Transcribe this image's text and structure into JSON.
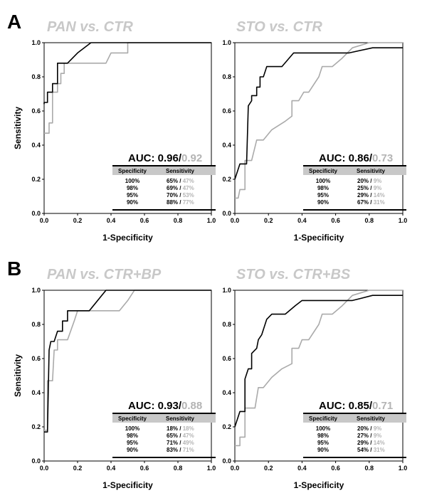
{
  "panel_letters": [
    "A",
    "B"
  ],
  "chart_data": [
    {
      "type": "line",
      "title": "PAN vs. CTR",
      "xlabel": "1-Specificity",
      "ylabel": "Sensitivity",
      "xlim": [
        0,
        1
      ],
      "ylim": [
        0,
        1
      ],
      "xticks": [
        "0.0",
        "0.2",
        "0.4",
        "0.6",
        "0.8",
        "1.0"
      ],
      "yticks": [
        "0.0",
        "0.2",
        "0.4",
        "0.6",
        "0.8",
        "1.0"
      ],
      "auc_label": "AUC:",
      "auc_black": "0.96/",
      "auc_gray": "0.92",
      "table_headers": [
        "Specificity",
        "Sensitivity"
      ],
      "table_rows": [
        {
          "spec": "100%",
          "sens_black": "65% /",
          "sens_gray": "47%"
        },
        {
          "spec": "98%",
          "sens_black": "69% /",
          "sens_gray": "47%"
        },
        {
          "spec": "95%",
          "sens_black": "70% /",
          "sens_gray": "53%"
        },
        {
          "spec": "90%",
          "sens_black": "88% /",
          "sens_gray": "77%"
        }
      ],
      "series": [
        {
          "color": "#000000",
          "points": [
            [
              0,
              0.64
            ],
            [
              0,
              0.65
            ],
            [
              0.02,
              0.65
            ],
            [
              0.02,
              0.71
            ],
            [
              0.05,
              0.71
            ],
            [
              0.05,
              0.76
            ],
            [
              0.08,
              0.76
            ],
            [
              0.08,
              0.88
            ],
            [
              0.14,
              0.88
            ],
            [
              0.14,
              0.88
            ],
            [
              0.2,
              0.94
            ],
            [
              0.28,
              1.0
            ],
            [
              1.0,
              1.0
            ]
          ]
        },
        {
          "color": "#aaaaaa",
          "points": [
            [
              0,
              0.47
            ],
            [
              0.03,
              0.47
            ],
            [
              0.03,
              0.53
            ],
            [
              0.05,
              0.53
            ],
            [
              0.05,
              0.71
            ],
            [
              0.08,
              0.71
            ],
            [
              0.08,
              0.76
            ],
            [
              0.1,
              0.76
            ],
            [
              0.1,
              0.82
            ],
            [
              0.12,
              0.82
            ],
            [
              0.12,
              0.88
            ],
            [
              0.37,
              0.88
            ],
            [
              0.4,
              0.94
            ],
            [
              0.5,
              0.94
            ],
            [
              0.5,
              1.0
            ],
            [
              1.0,
              1.0
            ]
          ]
        }
      ]
    },
    {
      "type": "line",
      "title": "STO vs. CTR",
      "xlabel": "1-Specificity",
      "ylabel": "",
      "xlim": [
        0,
        1
      ],
      "ylim": [
        0,
        1
      ],
      "xticks": [
        "0.0",
        "0.2",
        "0.4",
        "0.6",
        "0.8",
        "1.0"
      ],
      "yticks": [
        "0.0",
        "0.2",
        "0.4",
        "0.6",
        "0.8",
        "1.0"
      ],
      "auc_label": "AUC:",
      "auc_black": "0.86/",
      "auc_gray": "0.73",
      "table_headers": [
        "Specificity",
        "Sensitivity"
      ],
      "table_rows": [
        {
          "spec": "100%",
          "sens_black": "20% /",
          "sens_gray": "9%"
        },
        {
          "spec": "98%",
          "sens_black": "25% /",
          "sens_gray": "9%"
        },
        {
          "spec": "95%",
          "sens_black": "29% /",
          "sens_gray": "14%"
        },
        {
          "spec": "90%",
          "sens_black": "67% /",
          "sens_gray": "31%"
        }
      ],
      "series": [
        {
          "color": "#000000",
          "points": [
            [
              0,
              0.2
            ],
            [
              0.03,
              0.29
            ],
            [
              0.07,
              0.29
            ],
            [
              0.08,
              0.63
            ],
            [
              0.1,
              0.66
            ],
            [
              0.1,
              0.69
            ],
            [
              0.13,
              0.69
            ],
            [
              0.13,
              0.74
            ],
            [
              0.15,
              0.74
            ],
            [
              0.15,
              0.8
            ],
            [
              0.17,
              0.8
            ],
            [
              0.18,
              0.83
            ],
            [
              0.19,
              0.86
            ],
            [
              0.28,
              0.86
            ],
            [
              0.35,
              0.94
            ],
            [
              0.6,
              0.94
            ],
            [
              0.68,
              0.94
            ],
            [
              0.82,
              0.97
            ],
            [
              1.0,
              0.97
            ]
          ]
        },
        {
          "color": "#aaaaaa",
          "points": [
            [
              0,
              0.09
            ],
            [
              0.02,
              0.09
            ],
            [
              0.03,
              0.14
            ],
            [
              0.06,
              0.14
            ],
            [
              0.06,
              0.31
            ],
            [
              0.1,
              0.31
            ],
            [
              0.13,
              0.43
            ],
            [
              0.17,
              0.43
            ],
            [
              0.22,
              0.49
            ],
            [
              0.3,
              0.54
            ],
            [
              0.34,
              0.57
            ],
            [
              0.34,
              0.66
            ],
            [
              0.38,
              0.66
            ],
            [
              0.41,
              0.71
            ],
            [
              0.44,
              0.71
            ],
            [
              0.5,
              0.8
            ],
            [
              0.52,
              0.86
            ],
            [
              0.58,
              0.86
            ],
            [
              0.64,
              0.91
            ],
            [
              0.7,
              0.97
            ],
            [
              0.8,
              1.0
            ],
            [
              1.0,
              1.0
            ]
          ]
        }
      ]
    },
    {
      "type": "line",
      "title": "PAN vs. CTR+BP",
      "xlabel": "1-Specificity",
      "ylabel": "Sensitivity",
      "xlim": [
        0,
        1
      ],
      "ylim": [
        0,
        1
      ],
      "xticks": [
        "0.0",
        "0.2",
        "0.4",
        "0.6",
        "0.8",
        "1.0"
      ],
      "yticks": [
        "0.0",
        "0.2",
        "0.4",
        "0.6",
        "0.8",
        "1.0"
      ],
      "auc_label": "AUC:",
      "auc_black": "0.93/",
      "auc_gray": "0.88",
      "table_headers": [
        "Specificity",
        "Sensitivity"
      ],
      "table_rows": [
        {
          "spec": "100%",
          "sens_black": "18% /",
          "sens_gray": "18%"
        },
        {
          "spec": "98%",
          "sens_black": "65% /",
          "sens_gray": "47%"
        },
        {
          "spec": "95%",
          "sens_black": "71% /",
          "sens_gray": "49%"
        },
        {
          "spec": "90%",
          "sens_black": "83% /",
          "sens_gray": "71%"
        }
      ],
      "series": [
        {
          "color": "#000000",
          "points": [
            [
              0,
              0.17
            ],
            [
              0.02,
              0.17
            ],
            [
              0.03,
              0.65
            ],
            [
              0.04,
              0.7
            ],
            [
              0.06,
              0.7
            ],
            [
              0.08,
              0.76
            ],
            [
              0.11,
              0.76
            ],
            [
              0.11,
              0.82
            ],
            [
              0.14,
              0.82
            ],
            [
              0.14,
              0.88
            ],
            [
              0.27,
              0.88
            ],
            [
              0.37,
              1.0
            ],
            [
              1.0,
              1.0
            ]
          ]
        },
        {
          "color": "#aaaaaa",
          "points": [
            [
              0,
              0.18
            ],
            [
              0.02,
              0.18
            ],
            [
              0.02,
              0.47
            ],
            [
              0.05,
              0.47
            ],
            [
              0.06,
              0.65
            ],
            [
              0.08,
              0.65
            ],
            [
              0.08,
              0.71
            ],
            [
              0.14,
              0.71
            ],
            [
              0.18,
              0.82
            ],
            [
              0.2,
              0.88
            ],
            [
              0.45,
              0.88
            ],
            [
              0.5,
              0.94
            ],
            [
              0.54,
              1.0
            ],
            [
              1.0,
              1.0
            ]
          ]
        }
      ]
    },
    {
      "type": "line",
      "title": "STO vs. CTR+BS",
      "xlabel": "1-Specificity",
      "ylabel": "",
      "xlim": [
        0,
        1
      ],
      "ylim": [
        0,
        1
      ],
      "xticks": [
        "0.0",
        "0.2",
        "0.4",
        "0.6",
        "0.8",
        "1.0"
      ],
      "yticks": [
        "0.0",
        "0.2",
        "0.4",
        "0.6",
        "0.8",
        "1.0"
      ],
      "auc_label": "AUC:",
      "auc_black": "0.85/",
      "auc_gray": "0.71",
      "table_headers": [
        "Specificity",
        "Sensitivity"
      ],
      "table_rows": [
        {
          "spec": "100%",
          "sens_black": "20% /",
          "sens_gray": "9%"
        },
        {
          "spec": "98%",
          "sens_black": "27% /",
          "sens_gray": "9%"
        },
        {
          "spec": "95%",
          "sens_black": "29% /",
          "sens_gray": "14%"
        },
        {
          "spec": "90%",
          "sens_black": "54% /",
          "sens_gray": "31%"
        }
      ],
      "series": [
        {
          "color": "#000000",
          "points": [
            [
              0,
              0.2
            ],
            [
              0.03,
              0.29
            ],
            [
              0.06,
              0.29
            ],
            [
              0.06,
              0.48
            ],
            [
              0.08,
              0.54
            ],
            [
              0.1,
              0.54
            ],
            [
              0.1,
              0.63
            ],
            [
              0.13,
              0.66
            ],
            [
              0.14,
              0.71
            ],
            [
              0.16,
              0.74
            ],
            [
              0.17,
              0.77
            ],
            [
              0.19,
              0.83
            ],
            [
              0.22,
              0.86
            ],
            [
              0.3,
              0.86
            ],
            [
              0.36,
              0.91
            ],
            [
              0.4,
              0.94
            ],
            [
              0.7,
              0.94
            ],
            [
              0.82,
              0.97
            ],
            [
              1.0,
              0.97
            ]
          ]
        },
        {
          "color": "#aaaaaa",
          "points": [
            [
              0,
              0.09
            ],
            [
              0.03,
              0.09
            ],
            [
              0.03,
              0.14
            ],
            [
              0.06,
              0.14
            ],
            [
              0.06,
              0.31
            ],
            [
              0.12,
              0.31
            ],
            [
              0.14,
              0.43
            ],
            [
              0.17,
              0.43
            ],
            [
              0.22,
              0.49
            ],
            [
              0.28,
              0.54
            ],
            [
              0.34,
              0.57
            ],
            [
              0.34,
              0.66
            ],
            [
              0.38,
              0.66
            ],
            [
              0.4,
              0.71
            ],
            [
              0.44,
              0.71
            ],
            [
              0.5,
              0.8
            ],
            [
              0.52,
              0.86
            ],
            [
              0.58,
              0.86
            ],
            [
              0.64,
              0.91
            ],
            [
              0.7,
              0.97
            ],
            [
              0.8,
              1.0
            ],
            [
              1.0,
              1.0
            ]
          ]
        }
      ]
    }
  ]
}
